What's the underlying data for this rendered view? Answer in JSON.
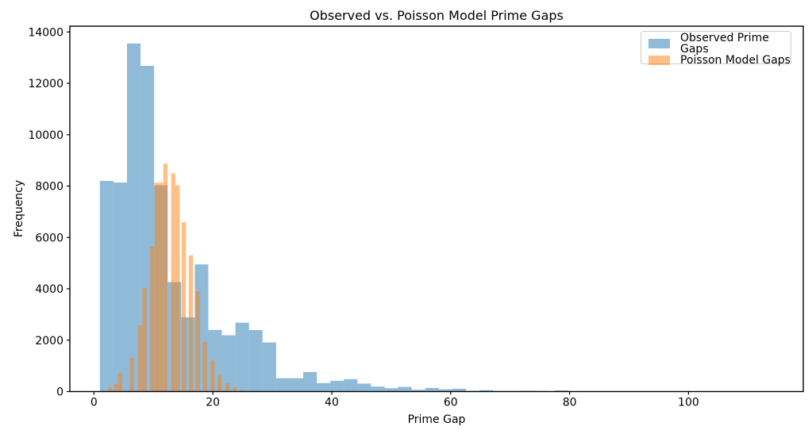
{
  "chart_data": {
    "type": "bar",
    "subtype": "histogram-overlay",
    "title": "Observed vs. Poisson Model Prime Gaps",
    "xlabel": "Prime Gap",
    "ylabel": "Frequency",
    "xlim": [
      -4.05,
      119.3
    ],
    "ylim": [
      0,
      14225
    ],
    "x_ticks": [
      0,
      20,
      40,
      60,
      80,
      100
    ],
    "y_ticks": [
      0,
      2000,
      4000,
      6000,
      8000,
      10000,
      12000,
      14000
    ],
    "grid": false,
    "legend": {
      "position": "upper right",
      "entries": [
        {
          "label": "Observed Prime Gaps",
          "color": "#1f77b4",
          "opacity": 0.5
        },
        {
          "label": "Poisson Model Gaps",
          "color": "#ff7f0e",
          "opacity": 0.5
        }
      ]
    },
    "series": [
      {
        "name": "Observed Prime Gaps",
        "color": "#1f77b4",
        "opacity": 0.5,
        "bin_width": 2.28,
        "bins": [
          [
            1.0,
            8200
          ],
          [
            3.28,
            8140
          ],
          [
            5.56,
            13550
          ],
          [
            7.84,
            12680
          ],
          [
            10.12,
            8030
          ],
          [
            12.4,
            4260
          ],
          [
            14.68,
            2890
          ],
          [
            16.96,
            4950
          ],
          [
            19.24,
            2400
          ],
          [
            21.52,
            2190
          ],
          [
            23.8,
            2680
          ],
          [
            26.08,
            2395
          ],
          [
            28.36,
            1910
          ],
          [
            30.64,
            520
          ],
          [
            32.92,
            520
          ],
          [
            35.2,
            760
          ],
          [
            37.48,
            330
          ],
          [
            39.76,
            420
          ],
          [
            42.04,
            480
          ],
          [
            44.32,
            310
          ],
          [
            46.6,
            195
          ],
          [
            48.88,
            130
          ],
          [
            51.16,
            180
          ],
          [
            53.44,
            70
          ],
          [
            55.72,
            140
          ],
          [
            58.0,
            90
          ],
          [
            60.28,
            110
          ],
          [
            62.56,
            30
          ],
          [
            64.84,
            55
          ],
          [
            67.12,
            25
          ],
          [
            69.4,
            25
          ],
          [
            71.68,
            30
          ],
          [
            73.96,
            25
          ],
          [
            77.5,
            45
          ]
        ]
      },
      {
        "name": "Poisson Model Gaps",
        "color": "#ff7f0e",
        "opacity": 0.5,
        "bin_width": 0.72,
        "bins": [
          [
            2.35,
            160
          ],
          [
            3.32,
            290
          ],
          [
            4.04,
            730
          ],
          [
            6.0,
            1315
          ],
          [
            7.42,
            2580
          ],
          [
            8.14,
            4020
          ],
          [
            9.46,
            5650
          ],
          [
            10.2,
            8130
          ],
          [
            10.92,
            8130
          ],
          [
            11.66,
            8875
          ],
          [
            12.99,
            8495
          ],
          [
            13.71,
            8030
          ],
          [
            14.76,
            6590
          ],
          [
            15.95,
            5305
          ],
          [
            17.1,
            3900
          ],
          [
            18.3,
            1910
          ],
          [
            19.6,
            1210
          ],
          [
            20.8,
            630
          ],
          [
            22.1,
            320
          ],
          [
            23.3,
            165
          ],
          [
            24.55,
            60
          ],
          [
            25.27,
            35
          ]
        ]
      }
    ]
  }
}
